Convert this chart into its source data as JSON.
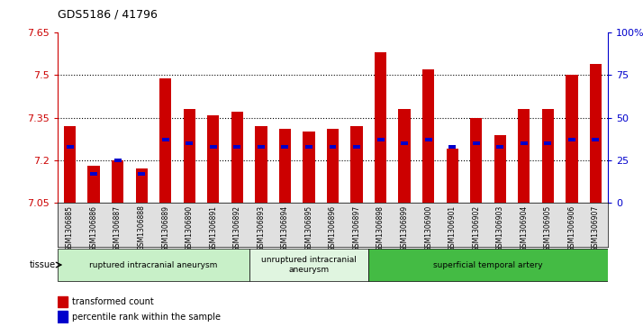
{
  "title": "GDS5186 / 41796",
  "samples": [
    "GSM1306885",
    "GSM1306886",
    "GSM1306887",
    "GSM1306888",
    "GSM1306889",
    "GSM1306890",
    "GSM1306891",
    "GSM1306892",
    "GSM1306893",
    "GSM1306894",
    "GSM1306895",
    "GSM1306896",
    "GSM1306897",
    "GSM1306898",
    "GSM1306899",
    "GSM1306900",
    "GSM1306901",
    "GSM1306902",
    "GSM1306903",
    "GSM1306904",
    "GSM1306905",
    "GSM1306906",
    "GSM1306907"
  ],
  "bar_values": [
    7.32,
    7.18,
    7.2,
    7.17,
    7.49,
    7.38,
    7.36,
    7.37,
    7.32,
    7.31,
    7.3,
    7.31,
    7.32,
    7.58,
    7.38,
    7.52,
    7.24,
    7.35,
    7.29,
    7.38,
    7.38,
    7.5,
    7.54
  ],
  "percentile_rank": [
    33,
    17,
    25,
    17,
    37,
    35,
    33,
    33,
    33,
    33,
    33,
    33,
    33,
    37,
    35,
    37,
    33,
    35,
    33,
    35,
    35,
    37,
    37
  ],
  "ymin": 7.05,
  "ymax": 7.65,
  "yticks": [
    7.05,
    7.2,
    7.35,
    7.5,
    7.65
  ],
  "right_yticks": [
    0,
    25,
    50,
    75,
    100
  ],
  "bar_color": "#cc0000",
  "percentile_color": "#0000cc",
  "bg_color": "#e0e0e0",
  "plot_bg": "#ffffff",
  "groups": [
    {
      "label": "ruptured intracranial aneurysm",
      "start": 0,
      "end": 8,
      "color": "#c8f0c8"
    },
    {
      "label": "unruptured intracranial\naneurysm",
      "start": 8,
      "end": 13,
      "color": "#e0f5e0"
    },
    {
      "label": "superficial temporal artery",
      "start": 13,
      "end": 23,
      "color": "#44bb44"
    }
  ],
  "legend_items": [
    {
      "label": "transformed count",
      "color": "#cc0000"
    },
    {
      "label": "percentile rank within the sample",
      "color": "#0000cc"
    }
  ],
  "tissue_label": "tissue"
}
